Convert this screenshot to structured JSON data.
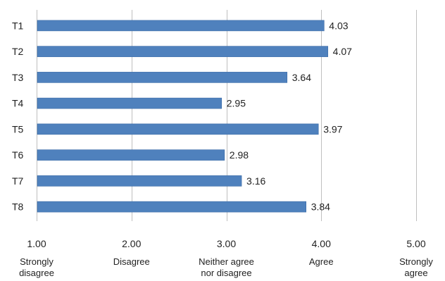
{
  "chart_data": {
    "type": "bar",
    "orientation": "horizontal",
    "categories": [
      "T1",
      "T2",
      "T3",
      "T4",
      "T5",
      "T6",
      "T7",
      "T8"
    ],
    "values": [
      4.03,
      4.07,
      3.64,
      2.95,
      3.97,
      2.98,
      3.16,
      3.84
    ],
    "value_labels": [
      "4.03",
      "4.07",
      "3.64",
      "2.95",
      "3.97",
      "2.98",
      "3.16",
      "3.84"
    ],
    "xlim": [
      1,
      5
    ],
    "x_ticks": [
      {
        "value": 1,
        "label": "1.00",
        "desc": [
          "Strongly",
          "disagree"
        ]
      },
      {
        "value": 2,
        "label": "2.00",
        "desc": [
          "Disagree"
        ]
      },
      {
        "value": 3,
        "label": "3.00",
        "desc": [
          "Neither agree",
          "nor disagree"
        ]
      },
      {
        "value": 4,
        "label": "4.00",
        "desc": [
          "Agree"
        ]
      },
      {
        "value": 5,
        "label": "5.00",
        "desc": [
          "Strongly",
          "agree"
        ]
      }
    ],
    "grid": "vertical",
    "legend": "none",
    "bar_color": "#4f81bd",
    "bar_edge_color": "#3a6aa6",
    "grid_color": "#bfbfbf"
  }
}
